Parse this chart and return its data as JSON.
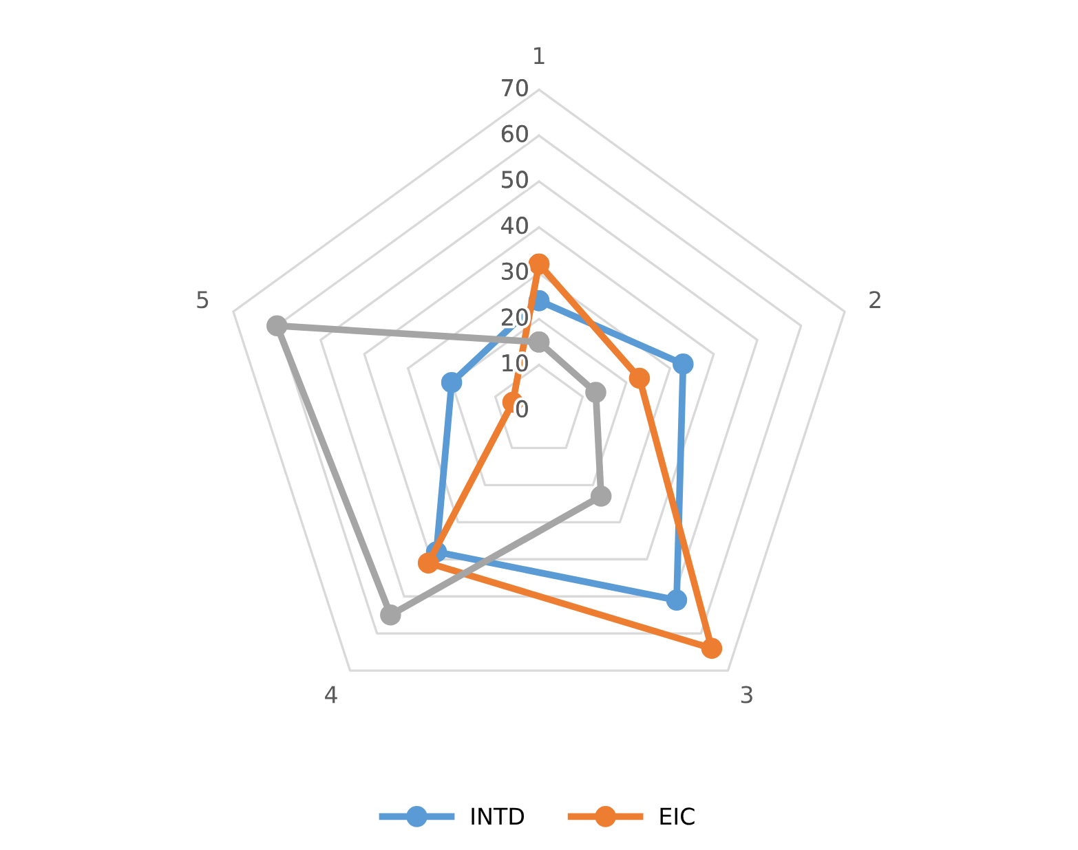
{
  "chart_data": {
    "type": "radar",
    "categories": [
      "1",
      "2",
      "3",
      "4",
      "5"
    ],
    "ylim": [
      0,
      70
    ],
    "yticks": [
      0,
      10,
      20,
      30,
      40,
      50,
      60,
      70
    ],
    "grid": true,
    "legend": "bottom",
    "marker": "circle",
    "line_style": "solid",
    "series": [
      {
        "name": "INTD",
        "color": "#5b9bd5",
        "values": [
          24,
          33,
          51,
          38,
          20
        ]
      },
      {
        "name": "EIC",
        "color": "#ed7d31",
        "values": [
          32,
          23,
          64,
          41,
          6
        ]
      },
      {
        "color": "#a5a5a5",
        "values": [
          15,
          13,
          23,
          55,
          60
        ]
      }
    ]
  }
}
